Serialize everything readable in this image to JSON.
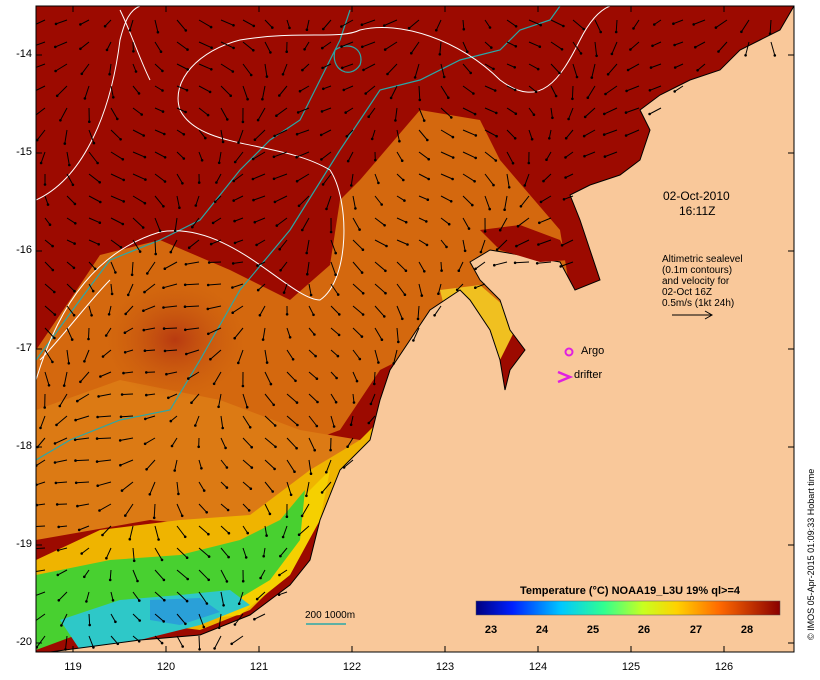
{
  "map": {
    "date": "02-Oct-2010",
    "time": "16:11Z",
    "altimetry_lines": [
      "Altimetric sealevel",
      "(0.1m contours)",
      "and velocity for",
      "02-Oct 16Z",
      "0.5m/s (1kt 24h)"
    ],
    "argo_label": "Argo",
    "drifter_label": "drifter",
    "depth_label": "200  1000m",
    "colorbar": {
      "title": "Temperature (°C) NOAA19_L3U 19% ql>=4",
      "ticks": [
        "23",
        "24",
        "25",
        "26",
        "27",
        "28"
      ]
    },
    "lat_ticks": [
      "-14",
      "-15",
      "-16",
      "-17",
      "-18",
      "-19",
      "-20"
    ],
    "lon_ticks": [
      "119",
      "120",
      "121",
      "122",
      "123",
      "124",
      "125",
      "126"
    ],
    "credit": "© IMOS 05-Apr-2015 01:09:33 Hobart time",
    "colors": {
      "land": "#f9c89a",
      "warm": "#9c0a00",
      "orange": "#d9700e",
      "yellow": "#f0c000",
      "green": "#3fd42a",
      "cyan": "#2ec0d8",
      "depth_contour": "#2aa8a8",
      "argo": "#e020e0"
    }
  }
}
